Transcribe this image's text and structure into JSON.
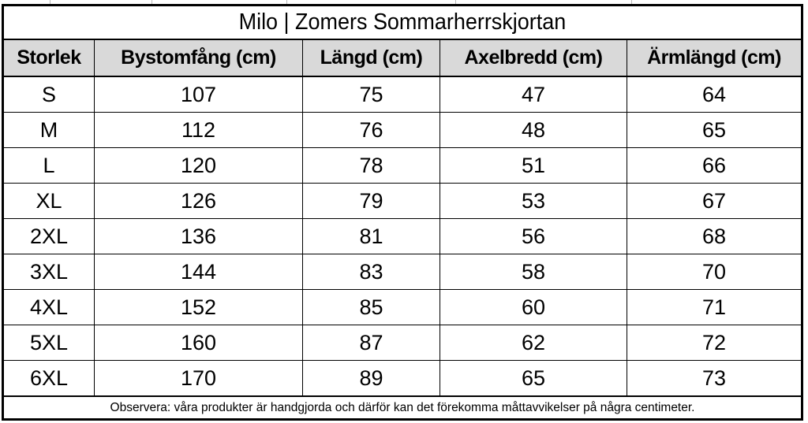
{
  "title": "Milo | Zomers Sommarherrskjortan",
  "table": {
    "headers": [
      "Storlek",
      "Bystomfång (cm)",
      "Längd (cm)",
      "Axelbredd (cm)",
      "Ärmlängd (cm)"
    ],
    "rows": [
      [
        "S",
        "107",
        "75",
        "47",
        "64"
      ],
      [
        "M",
        "112",
        "76",
        "48",
        "65"
      ],
      [
        "L",
        "120",
        "78",
        "51",
        "66"
      ],
      [
        "XL",
        "126",
        "79",
        "53",
        "67"
      ],
      [
        "2XL",
        "136",
        "81",
        "56",
        "68"
      ],
      [
        "3XL",
        "144",
        "83",
        "58",
        "70"
      ],
      [
        "4XL",
        "152",
        "85",
        "60",
        "71"
      ],
      [
        "5XL",
        "160",
        "87",
        "62",
        "72"
      ],
      [
        "6XL",
        "170",
        "89",
        "65",
        "73"
      ]
    ],
    "footnote": "Observera: våra produkter är handgjorda och därför kan det förekomma måttavvikelser på några centimeter."
  },
  "colors": {
    "header_bg": "#d9d9d9",
    "border": "#000000",
    "background": "#ffffff"
  }
}
